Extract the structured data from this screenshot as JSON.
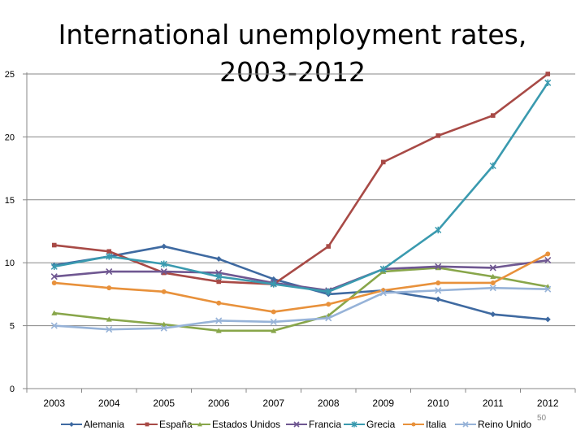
{
  "chart_data": {
    "type": "line",
    "title": "International unemployment rates, 2003-2012",
    "x": [
      "2003",
      "2004",
      "2005",
      "2006",
      "2007",
      "2008",
      "2009",
      "2010",
      "2011",
      "2012"
    ],
    "ylim": [
      0,
      25
    ],
    "yticks": [
      "0",
      "5",
      "10",
      "15",
      "20",
      "25"
    ],
    "grid": "horizontal",
    "legend_position": "bottom",
    "series": [
      {
        "name": "Alemania",
        "color": "#3f6aa1",
        "marker": "diamond",
        "values": [
          9.8,
          10.5,
          11.3,
          10.3,
          8.7,
          7.5,
          7.8,
          7.1,
          5.9,
          5.5
        ]
      },
      {
        "name": "España",
        "color": "#a84a46",
        "marker": "square",
        "values": [
          11.4,
          10.9,
          9.2,
          8.5,
          8.3,
          11.3,
          18.0,
          20.1,
          21.7,
          25.0
        ]
      },
      {
        "name": "Estados Unidos",
        "color": "#88a64a",
        "marker": "triangle",
        "values": [
          6.0,
          5.5,
          5.1,
          4.6,
          4.6,
          5.8,
          9.3,
          9.6,
          8.9,
          8.1
        ]
      },
      {
        "name": "Francia",
        "color": "#6f5791",
        "marker": "x",
        "values": [
          8.9,
          9.3,
          9.3,
          9.2,
          8.4,
          7.8,
          9.5,
          9.7,
          9.6,
          10.2
        ]
      },
      {
        "name": "Grecia",
        "color": "#3a9aaf",
        "marker": "star",
        "values": [
          9.7,
          10.5,
          9.9,
          8.9,
          8.3,
          7.7,
          9.5,
          12.6,
          17.7,
          24.3
        ]
      },
      {
        "name": "Italia",
        "color": "#e8913b",
        "marker": "circle",
        "values": [
          8.4,
          8.0,
          7.7,
          6.8,
          6.1,
          6.7,
          7.8,
          8.4,
          8.4,
          10.7
        ]
      },
      {
        "name": "Reino Unido",
        "color": "#97b3d8",
        "marker": "x",
        "values": [
          5.0,
          4.7,
          4.8,
          5.4,
          5.3,
          5.6,
          7.6,
          7.8,
          8.0,
          7.9
        ]
      }
    ]
  },
  "slide": {
    "number": "50"
  }
}
